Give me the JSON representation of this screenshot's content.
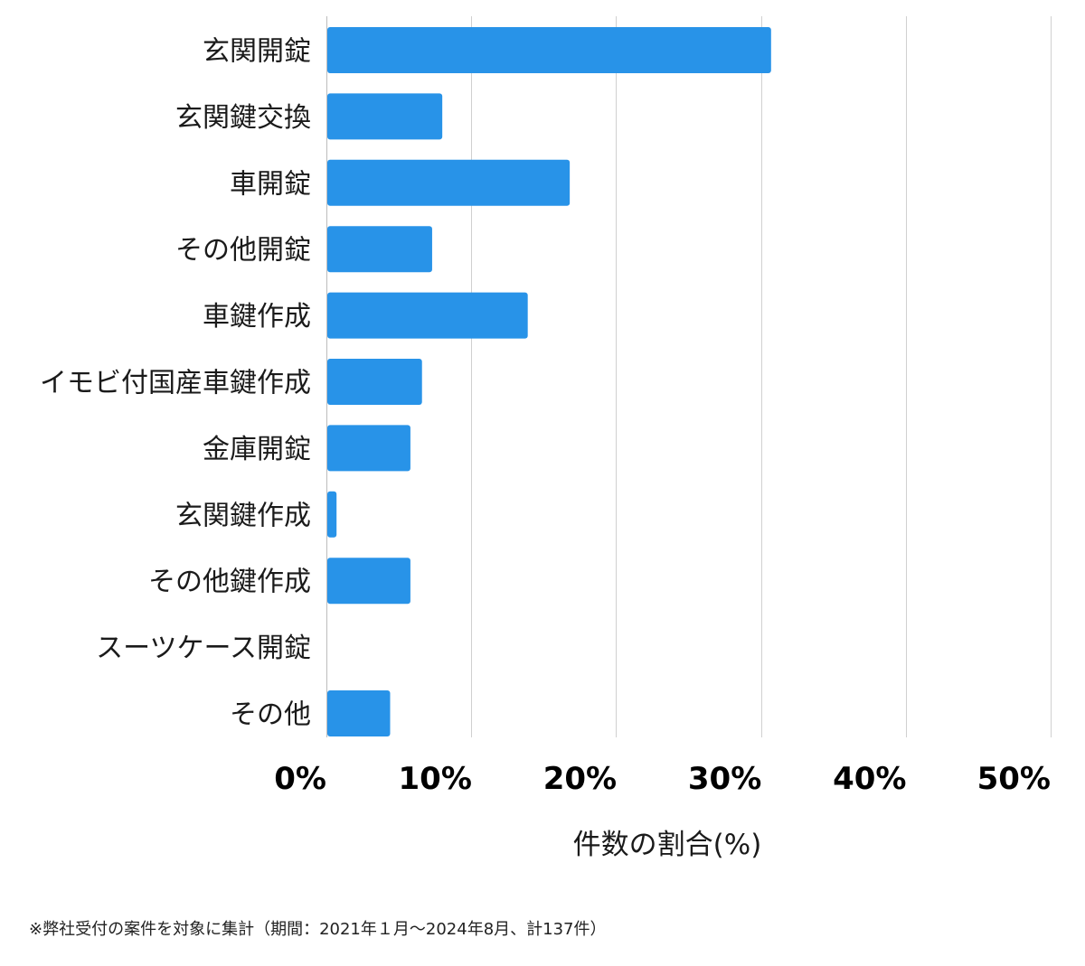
{
  "chart_data": {
    "type": "bar",
    "orientation": "horizontal",
    "categories": [
      "玄関開錠",
      "玄関鍵交換",
      "車開錠",
      "その他開錠",
      "車鍵作成",
      "イモビ付国産車鍵作成",
      "金庫開錠",
      "玄関鍵作成",
      "その他鍵作成",
      "スーツケース開錠",
      "その他"
    ],
    "values": [
      30.7,
      8.0,
      16.8,
      7.3,
      13.9,
      6.6,
      5.8,
      0.7,
      5.8,
      0.0,
      4.4
    ],
    "xlim": [
      0,
      50
    ],
    "xticks": [
      "0%",
      "10%",
      "20%",
      "30%",
      "40%",
      "50%"
    ],
    "xlabel": "件数の割合(%)",
    "ylabel": "",
    "grid": "vertical",
    "legend": "none",
    "bar_color": "#2893e8",
    "grid_color": "#d0d0d0"
  },
  "footnote": "※弊社受付の案件を対象に集計（期間：2021年１月〜2024年8月、計137件）"
}
